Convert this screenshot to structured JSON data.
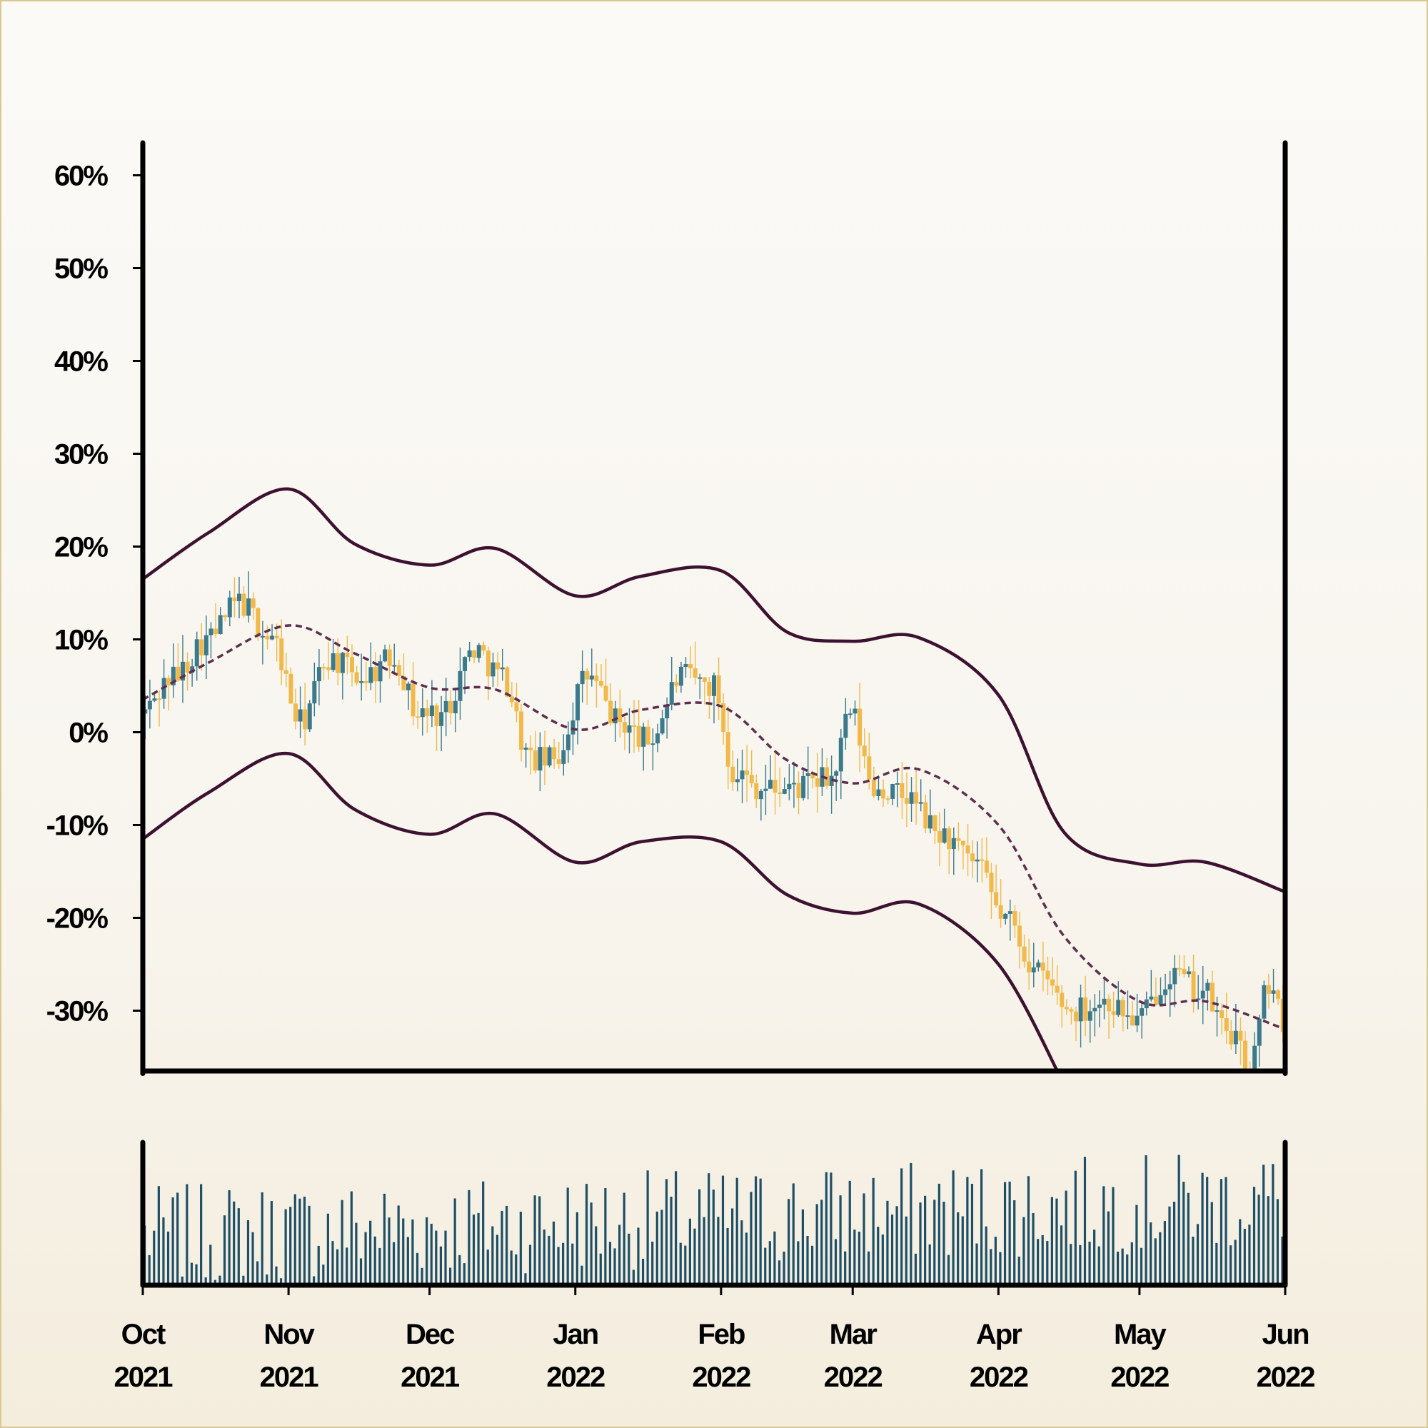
{
  "chart_data": {
    "type": "candlestick",
    "title": "",
    "xlabel": "",
    "ylabel": "",
    "x_range": [
      "2021-10-01",
      "2022-06-01"
    ],
    "ylim": [
      -0.365,
      0.635
    ],
    "yticks": [
      0.6,
      0.5,
      0.4,
      0.3,
      0.2,
      0.1,
      0,
      -0.1,
      -0.2,
      -0.3
    ],
    "ytick_labels": [
      "60%",
      "50%",
      "40%",
      "30%",
      "20%",
      "10%",
      "0%",
      "-10%",
      "-20%",
      "-30%"
    ],
    "xticks": [
      "2021-10-01",
      "2021-11-01",
      "2021-12-01",
      "2022-01-01",
      "2022-02-01",
      "2022-03-01",
      "2022-04-01",
      "2022-05-01",
      "2022-06-01"
    ],
    "xtick_labels": [
      [
        "Oct",
        "2021"
      ],
      [
        "Nov",
        "2021"
      ],
      [
        "Dec",
        "2021"
      ],
      [
        "Jan",
        "2022"
      ],
      [
        "Feb",
        "2022"
      ],
      [
        "Mar",
        "2022"
      ],
      [
        "Apr",
        "2022"
      ],
      [
        "May",
        "2022"
      ],
      [
        "Jun",
        "2022"
      ]
    ],
    "grid": false,
    "colors": {
      "up": "#3b7a8c",
      "down": "#f2b94a",
      "bands": "#3d1230",
      "mid": "#5e2e4e",
      "volume": "#1e4f66",
      "axis": "#000000"
    },
    "close_path": [
      [
        "2021-10-01",
        0.02
      ],
      [
        "2021-10-08",
        0.06
      ],
      [
        "2021-10-15",
        0.1
      ],
      [
        "2021-10-22",
        0.14
      ],
      [
        "2021-10-29",
        0.1
      ],
      [
        "2021-11-04",
        0.01
      ],
      [
        "2021-11-10",
        0.08
      ],
      [
        "2021-11-17",
        0.06
      ],
      [
        "2021-11-24",
        0.08
      ],
      [
        "2021-11-29",
        0.02
      ],
      [
        "2021-12-04",
        0.02
      ],
      [
        "2021-12-11",
        0.09
      ],
      [
        "2021-12-17",
        0.06
      ],
      [
        "2021-12-23",
        -0.03
      ],
      [
        "2021-12-28",
        -0.03
      ],
      [
        "2022-01-04",
        0.06
      ],
      [
        "2022-01-11",
        0.01
      ],
      [
        "2022-01-17",
        -0.01
      ],
      [
        "2022-01-24",
        0.06
      ],
      [
        "2022-01-31",
        0.05
      ],
      [
        "2022-02-04",
        -0.04
      ],
      [
        "2022-02-10",
        -0.06
      ],
      [
        "2022-02-17",
        -0.06
      ],
      [
        "2022-02-25",
        -0.05
      ],
      [
        "2022-03-01",
        0.02
      ],
      [
        "2022-03-06",
        -0.06
      ],
      [
        "2022-03-13",
        -0.07
      ],
      [
        "2022-03-20",
        -0.11
      ],
      [
        "2022-03-27",
        -0.14
      ],
      [
        "2022-04-03",
        -0.2
      ],
      [
        "2022-04-10",
        -0.26
      ],
      [
        "2022-04-17",
        -0.3
      ],
      [
        "2022-04-24",
        -0.29
      ],
      [
        "2022-05-01",
        -0.31
      ],
      [
        "2022-05-08",
        -0.26
      ],
      [
        "2022-05-15",
        -0.28
      ],
      [
        "2022-05-20",
        -0.32
      ],
      [
        "2022-05-25",
        -0.36
      ],
      [
        "2022-05-29",
        -0.27
      ],
      [
        "2022-06-01",
        -0.31
      ]
    ],
    "mid_band": [
      [
        "2021-10-01",
        0.035
      ],
      [
        "2021-10-15",
        0.075
      ],
      [
        "2021-11-01",
        0.115
      ],
      [
        "2021-11-15",
        0.085
      ],
      [
        "2021-12-01",
        0.048
      ],
      [
        "2021-12-15",
        0.046
      ],
      [
        "2022-01-01",
        0.003
      ],
      [
        "2022-01-15",
        0.024
      ],
      [
        "2022-02-01",
        0.028
      ],
      [
        "2022-02-15",
        -0.03
      ],
      [
        "2022-03-01",
        -0.055
      ],
      [
        "2022-03-15",
        -0.04
      ],
      [
        "2022-04-01",
        -0.1
      ],
      [
        "2022-04-15",
        -0.22
      ],
      [
        "2022-05-01",
        -0.29
      ],
      [
        "2022-05-15",
        -0.29
      ],
      [
        "2022-06-01",
        -0.32
      ]
    ],
    "upper_band": [
      [
        "2021-10-01",
        0.165
      ],
      [
        "2021-10-15",
        0.215
      ],
      [
        "2021-11-01",
        0.262
      ],
      [
        "2021-11-15",
        0.203
      ],
      [
        "2021-12-01",
        0.18
      ],
      [
        "2021-12-15",
        0.198
      ],
      [
        "2022-01-01",
        0.147
      ],
      [
        "2022-01-15",
        0.168
      ],
      [
        "2022-02-01",
        0.174
      ],
      [
        "2022-02-15",
        0.108
      ],
      [
        "2022-03-01",
        0.098
      ],
      [
        "2022-03-15",
        0.102
      ],
      [
        "2022-04-01",
        0.04
      ],
      [
        "2022-04-15",
        -0.108
      ],
      [
        "2022-05-01",
        -0.142
      ],
      [
        "2022-05-15",
        -0.14
      ],
      [
        "2022-06-01",
        -0.172
      ]
    ],
    "lower_band": [
      [
        "2021-10-01",
        -0.115
      ],
      [
        "2021-10-15",
        -0.065
      ],
      [
        "2021-11-01",
        -0.023
      ],
      [
        "2021-11-15",
        -0.083
      ],
      [
        "2021-12-01",
        -0.11
      ],
      [
        "2021-12-15",
        -0.088
      ],
      [
        "2022-01-01",
        -0.14
      ],
      [
        "2022-01-15",
        -0.118
      ],
      [
        "2022-02-01",
        -0.118
      ],
      [
        "2022-02-15",
        -0.175
      ],
      [
        "2022-03-01",
        -0.195
      ],
      [
        "2022-03-15",
        -0.185
      ],
      [
        "2022-04-01",
        -0.25
      ],
      [
        "2022-04-15",
        -0.38
      ]
    ],
    "volume_ylim": [
      0,
      1
    ]
  }
}
